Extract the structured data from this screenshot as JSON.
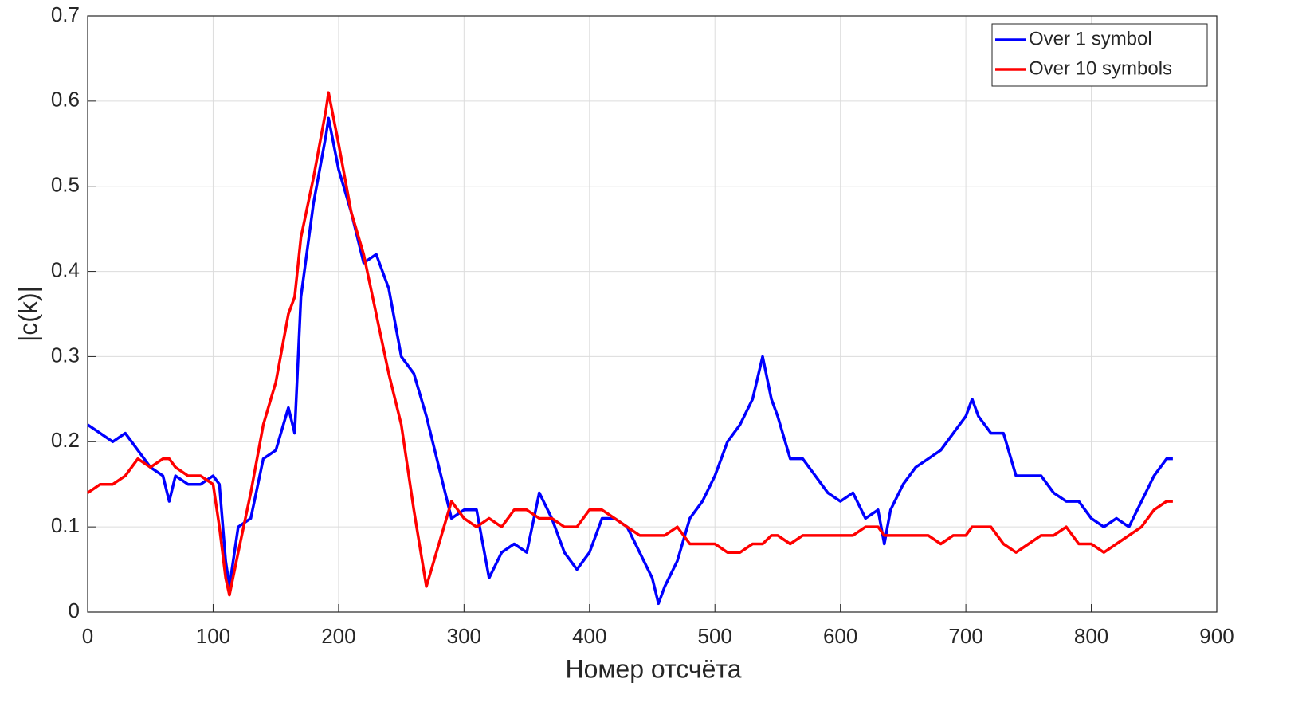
{
  "chart_data": {
    "type": "line",
    "xlabel": "Номер отсчёта",
    "ylabel": "|c(k)|",
    "x": [
      0,
      10,
      20,
      30,
      40,
      50,
      60,
      65,
      70,
      80,
      90,
      100,
      105,
      110,
      113,
      120,
      130,
      140,
      150,
      160,
      165,
      170,
      180,
      190,
      192,
      200,
      210,
      220,
      230,
      240,
      250,
      260,
      270,
      280,
      290,
      300,
      310,
      320,
      330,
      340,
      350,
      360,
      370,
      380,
      390,
      400,
      410,
      420,
      430,
      440,
      450,
      455,
      460,
      470,
      480,
      490,
      500,
      510,
      520,
      530,
      538,
      545,
      550,
      560,
      570,
      580,
      590,
      600,
      610,
      620,
      630,
      635,
      640,
      650,
      660,
      670,
      680,
      690,
      700,
      705,
      710,
      720,
      730,
      740,
      750,
      760,
      770,
      780,
      790,
      800,
      810,
      820,
      830,
      840,
      850,
      860,
      865
    ],
    "series": [
      {
        "name": "Over 1 symbol",
        "color": "#0000ff",
        "values": [
          0.22,
          0.21,
          0.2,
          0.21,
          0.19,
          0.17,
          0.16,
          0.13,
          0.16,
          0.15,
          0.15,
          0.16,
          0.15,
          0.06,
          0.03,
          0.1,
          0.11,
          0.18,
          0.19,
          0.24,
          0.21,
          0.37,
          0.48,
          0.56,
          0.58,
          0.52,
          0.47,
          0.41,
          0.42,
          0.38,
          0.3,
          0.28,
          0.23,
          0.17,
          0.11,
          0.12,
          0.12,
          0.04,
          0.07,
          0.08,
          0.07,
          0.14,
          0.11,
          0.07,
          0.05,
          0.07,
          0.11,
          0.11,
          0.1,
          0.07,
          0.04,
          0.01,
          0.03,
          0.06,
          0.11,
          0.13,
          0.16,
          0.2,
          0.22,
          0.25,
          0.3,
          0.25,
          0.23,
          0.18,
          0.18,
          0.16,
          0.14,
          0.13,
          0.14,
          0.11,
          0.12,
          0.08,
          0.12,
          0.15,
          0.17,
          0.18,
          0.19,
          0.21,
          0.23,
          0.25,
          0.23,
          0.21,
          0.21,
          0.16,
          0.16,
          0.16,
          0.14,
          0.13,
          0.13,
          0.11,
          0.1,
          0.11,
          0.1,
          0.13,
          0.16,
          0.18,
          0.18
        ]
      },
      {
        "name": "Over 10 symbols",
        "color": "#ff0000",
        "values": [
          0.14,
          0.15,
          0.15,
          0.16,
          0.18,
          0.17,
          0.18,
          0.18,
          0.17,
          0.16,
          0.16,
          0.15,
          0.1,
          0.04,
          0.02,
          0.07,
          0.14,
          0.22,
          0.27,
          0.35,
          0.37,
          0.44,
          0.51,
          0.59,
          0.61,
          0.55,
          0.47,
          0.42,
          0.35,
          0.28,
          0.22,
          0.12,
          0.03,
          0.08,
          0.13,
          0.11,
          0.1,
          0.11,
          0.1,
          0.12,
          0.12,
          0.11,
          0.11,
          0.1,
          0.1,
          0.12,
          0.12,
          0.11,
          0.1,
          0.09,
          0.09,
          0.09,
          0.09,
          0.1,
          0.08,
          0.08,
          0.08,
          0.07,
          0.07,
          0.08,
          0.08,
          0.09,
          0.09,
          0.08,
          0.09,
          0.09,
          0.09,
          0.09,
          0.09,
          0.1,
          0.1,
          0.09,
          0.09,
          0.09,
          0.09,
          0.09,
          0.08,
          0.09,
          0.09,
          0.1,
          0.1,
          0.1,
          0.08,
          0.07,
          0.08,
          0.09,
          0.09,
          0.1,
          0.08,
          0.08,
          0.07,
          0.08,
          0.09,
          0.1,
          0.12,
          0.13,
          0.13
        ]
      }
    ],
    "xlim": [
      0,
      900
    ],
    "xticks": [
      0,
      100,
      200,
      300,
      400,
      500,
      600,
      700,
      800,
      900
    ],
    "ylim": [
      0,
      0.7
    ],
    "yticks": [
      0,
      0.1,
      0.2,
      0.3,
      0.4,
      0.5,
      0.6,
      0.7
    ],
    "grid": true,
    "legend": "upper right"
  }
}
